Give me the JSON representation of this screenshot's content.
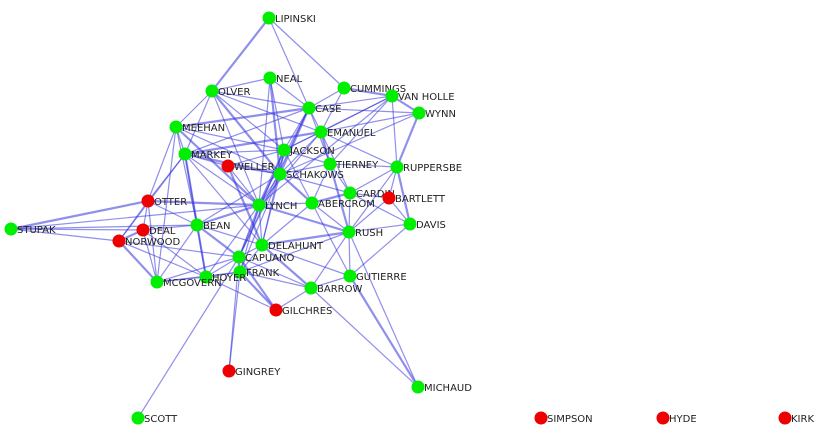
{
  "nodes": [
    {
      "label": "LIPINSKI",
      "color": "#00ee00"
    },
    {
      "label": "NEAL",
      "color": "#00ee00"
    },
    {
      "label": "CUMMINGS",
      "color": "#00ee00"
    },
    {
      "label": "OLVER",
      "color": "#00ee00"
    },
    {
      "label": "VAN HOLLE",
      "color": "#00ee00"
    },
    {
      "label": "CASE",
      "color": "#00ee00"
    },
    {
      "label": "WYNN",
      "color": "#00ee00"
    },
    {
      "label": "MEEHAN",
      "color": "#00ee00"
    },
    {
      "label": "EMANUEL",
      "color": "#00ee00"
    },
    {
      "label": "JACKSON",
      "color": "#00ee00"
    },
    {
      "label": "MARKEY",
      "color": "#00ee00"
    },
    {
      "label": "TIERNEY",
      "color": "#00ee00"
    },
    {
      "label": "WELLER",
      "color": "#ee0000"
    },
    {
      "label": "RUPPERSBE",
      "color": "#00ee00"
    },
    {
      "label": "SCHAKOWS",
      "color": "#00ee00"
    },
    {
      "label": "CARDIN",
      "color": "#00ee00"
    },
    {
      "label": "BARTLETT",
      "color": "#ee0000"
    },
    {
      "label": "OTTER",
      "color": "#ee0000"
    },
    {
      "label": "ABERCROM",
      "color": "#00ee00"
    },
    {
      "label": "LYNCH",
      "color": "#00ee00"
    },
    {
      "label": "STUPAK",
      "color": "#00ee00"
    },
    {
      "label": "DEAL",
      "color": "#ee0000"
    },
    {
      "label": "BEAN",
      "color": "#00ee00"
    },
    {
      "label": "DAVIS",
      "color": "#00ee00"
    },
    {
      "label": "RUSH",
      "color": "#00ee00"
    },
    {
      "label": "NORWOOD",
      "color": "#ee0000"
    },
    {
      "label": "DELAHUNT",
      "color": "#00ee00"
    },
    {
      "label": "CAPUANO",
      "color": "#00ee00"
    },
    {
      "label": "FRANK",
      "color": "#00ee00"
    },
    {
      "label": "HOYER",
      "color": "#00ee00"
    },
    {
      "label": "GUTIERRE",
      "color": "#00ee00"
    },
    {
      "label": "MCGOVERN",
      "color": "#00ee00"
    },
    {
      "label": "BARROW",
      "color": "#00ee00"
    },
    {
      "label": "GILCHRES",
      "color": "#ee0000"
    },
    {
      "label": "GINGREY",
      "color": "#ee0000"
    },
    {
      "label": "MICHAUD",
      "color": "#00ee00"
    },
    {
      "label": "SCOTT",
      "color": "#00ee00"
    },
    {
      "label": "SIMPSON",
      "color": "#ee0000"
    },
    {
      "label": "HYDE",
      "color": "#ee0000"
    },
    {
      "label": "KIRK",
      "color": "#ee0000"
    }
  ]
}
